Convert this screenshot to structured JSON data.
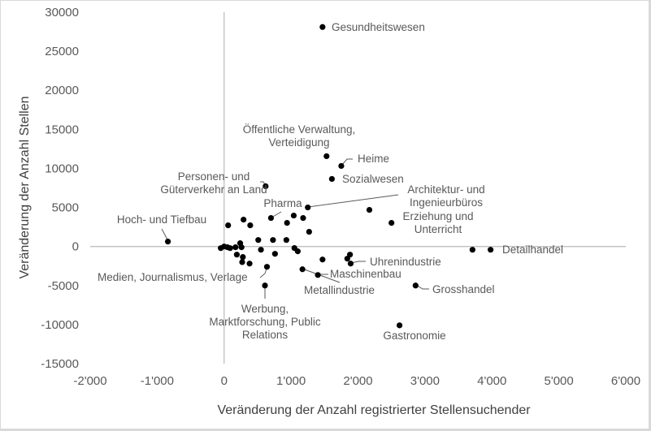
{
  "chart_data": {
    "type": "scatter",
    "title": "",
    "xlabel": "Veränderung der Anzahl registrierter Stellensuchender",
    "ylabel": "Veränderung der Anzahl Stellen",
    "xlim": [
      -2000,
      6000
    ],
    "ylim": [
      -15000,
      30000
    ],
    "x_ticks": [
      "-2'000",
      "-1'000",
      "0",
      "1'000",
      "2'000",
      "3'000",
      "4'000",
      "5'000",
      "6'000"
    ],
    "y_ticks": [
      "30000",
      "25000",
      "20000",
      "15000",
      "10000",
      "5000",
      "0",
      "-5000",
      "-10000",
      "-15000"
    ],
    "grid": false,
    "legend": null,
    "marker_color": "#000000",
    "labeled_points": [
      {
        "label": "Gesundheitswesen",
        "x": 1470,
        "y": 28100
      },
      {
        "label": "Öffentliche Verwaltung, Verteidigung",
        "x": 1530,
        "y": 11560
      },
      {
        "label": "Heime",
        "x": 1750,
        "y": 10310
      },
      {
        "label": "Sozialwesen",
        "x": 1610,
        "y": 8650
      },
      {
        "label": "Personen- und Güterverkehr an Land",
        "x": 620,
        "y": 7710
      },
      {
        "label": "Architektur- und Ingenieurbüros",
        "x": 1250,
        "y": 5000
      },
      {
        "label": "Erziehung und Unterricht",
        "x": 2500,
        "y": 3020
      },
      {
        "label": "Pharma",
        "x": 700,
        "y": 3650
      },
      {
        "label": "Hoch- und Tiefbau",
        "x": -840,
        "y": 630
      },
      {
        "label": "Detailhandel",
        "x": 3980,
        "y": -420
      },
      {
        "label": "Uhrenindustrie",
        "x": 1890,
        "y": -2190
      },
      {
        "label": "Maschinenbau",
        "x": 1400,
        "y": -3650
      },
      {
        "label": "Metallindustrie",
        "x": 1170,
        "y": -2920
      },
      {
        "label": "Medien, Journalismus, Verlage",
        "x": 640,
        "y": -2600
      },
      {
        "label": "Werbung, Marktforschung, Public Relations",
        "x": 610,
        "y": -5000
      },
      {
        "label": "Grosshandel",
        "x": 2860,
        "y": -5000
      },
      {
        "label": "Gastronomie",
        "x": 2620,
        "y": -10100
      }
    ],
    "unlabeled_points": [
      {
        "x": 2170,
        "y": 4690
      },
      {
        "x": 3710,
        "y": -420
      },
      {
        "x": 1040,
        "y": 3960
      },
      {
        "x": 940,
        "y": 3020
      },
      {
        "x": 1180,
        "y": 3650
      },
      {
        "x": 60,
        "y": 2710
      },
      {
        "x": 290,
        "y": 3440
      },
      {
        "x": 390,
        "y": 2710
      },
      {
        "x": 1270,
        "y": 1880
      },
      {
        "x": 510,
        "y": 830
      },
      {
        "x": 730,
        "y": 830
      },
      {
        "x": 930,
        "y": 830
      },
      {
        "x": -50,
        "y": -210
      },
      {
        "x": 0,
        "y": 0
      },
      {
        "x": 50,
        "y": -100
      },
      {
        "x": 90,
        "y": -210
      },
      {
        "x": 170,
        "y": -100
      },
      {
        "x": 240,
        "y": 420
      },
      {
        "x": 260,
        "y": -100
      },
      {
        "x": 1050,
        "y": -200
      },
      {
        "x": 550,
        "y": -420
      },
      {
        "x": 1100,
        "y": -620
      },
      {
        "x": 190,
        "y": -1040
      },
      {
        "x": 760,
        "y": -940
      },
      {
        "x": 280,
        "y": -1350
      },
      {
        "x": 270,
        "y": -2000
      },
      {
        "x": 380,
        "y": -2190
      },
      {
        "x": 1470,
        "y": -1670
      },
      {
        "x": 1880,
        "y": -1040
      },
      {
        "x": 1840,
        "y": -1560
      }
    ]
  }
}
